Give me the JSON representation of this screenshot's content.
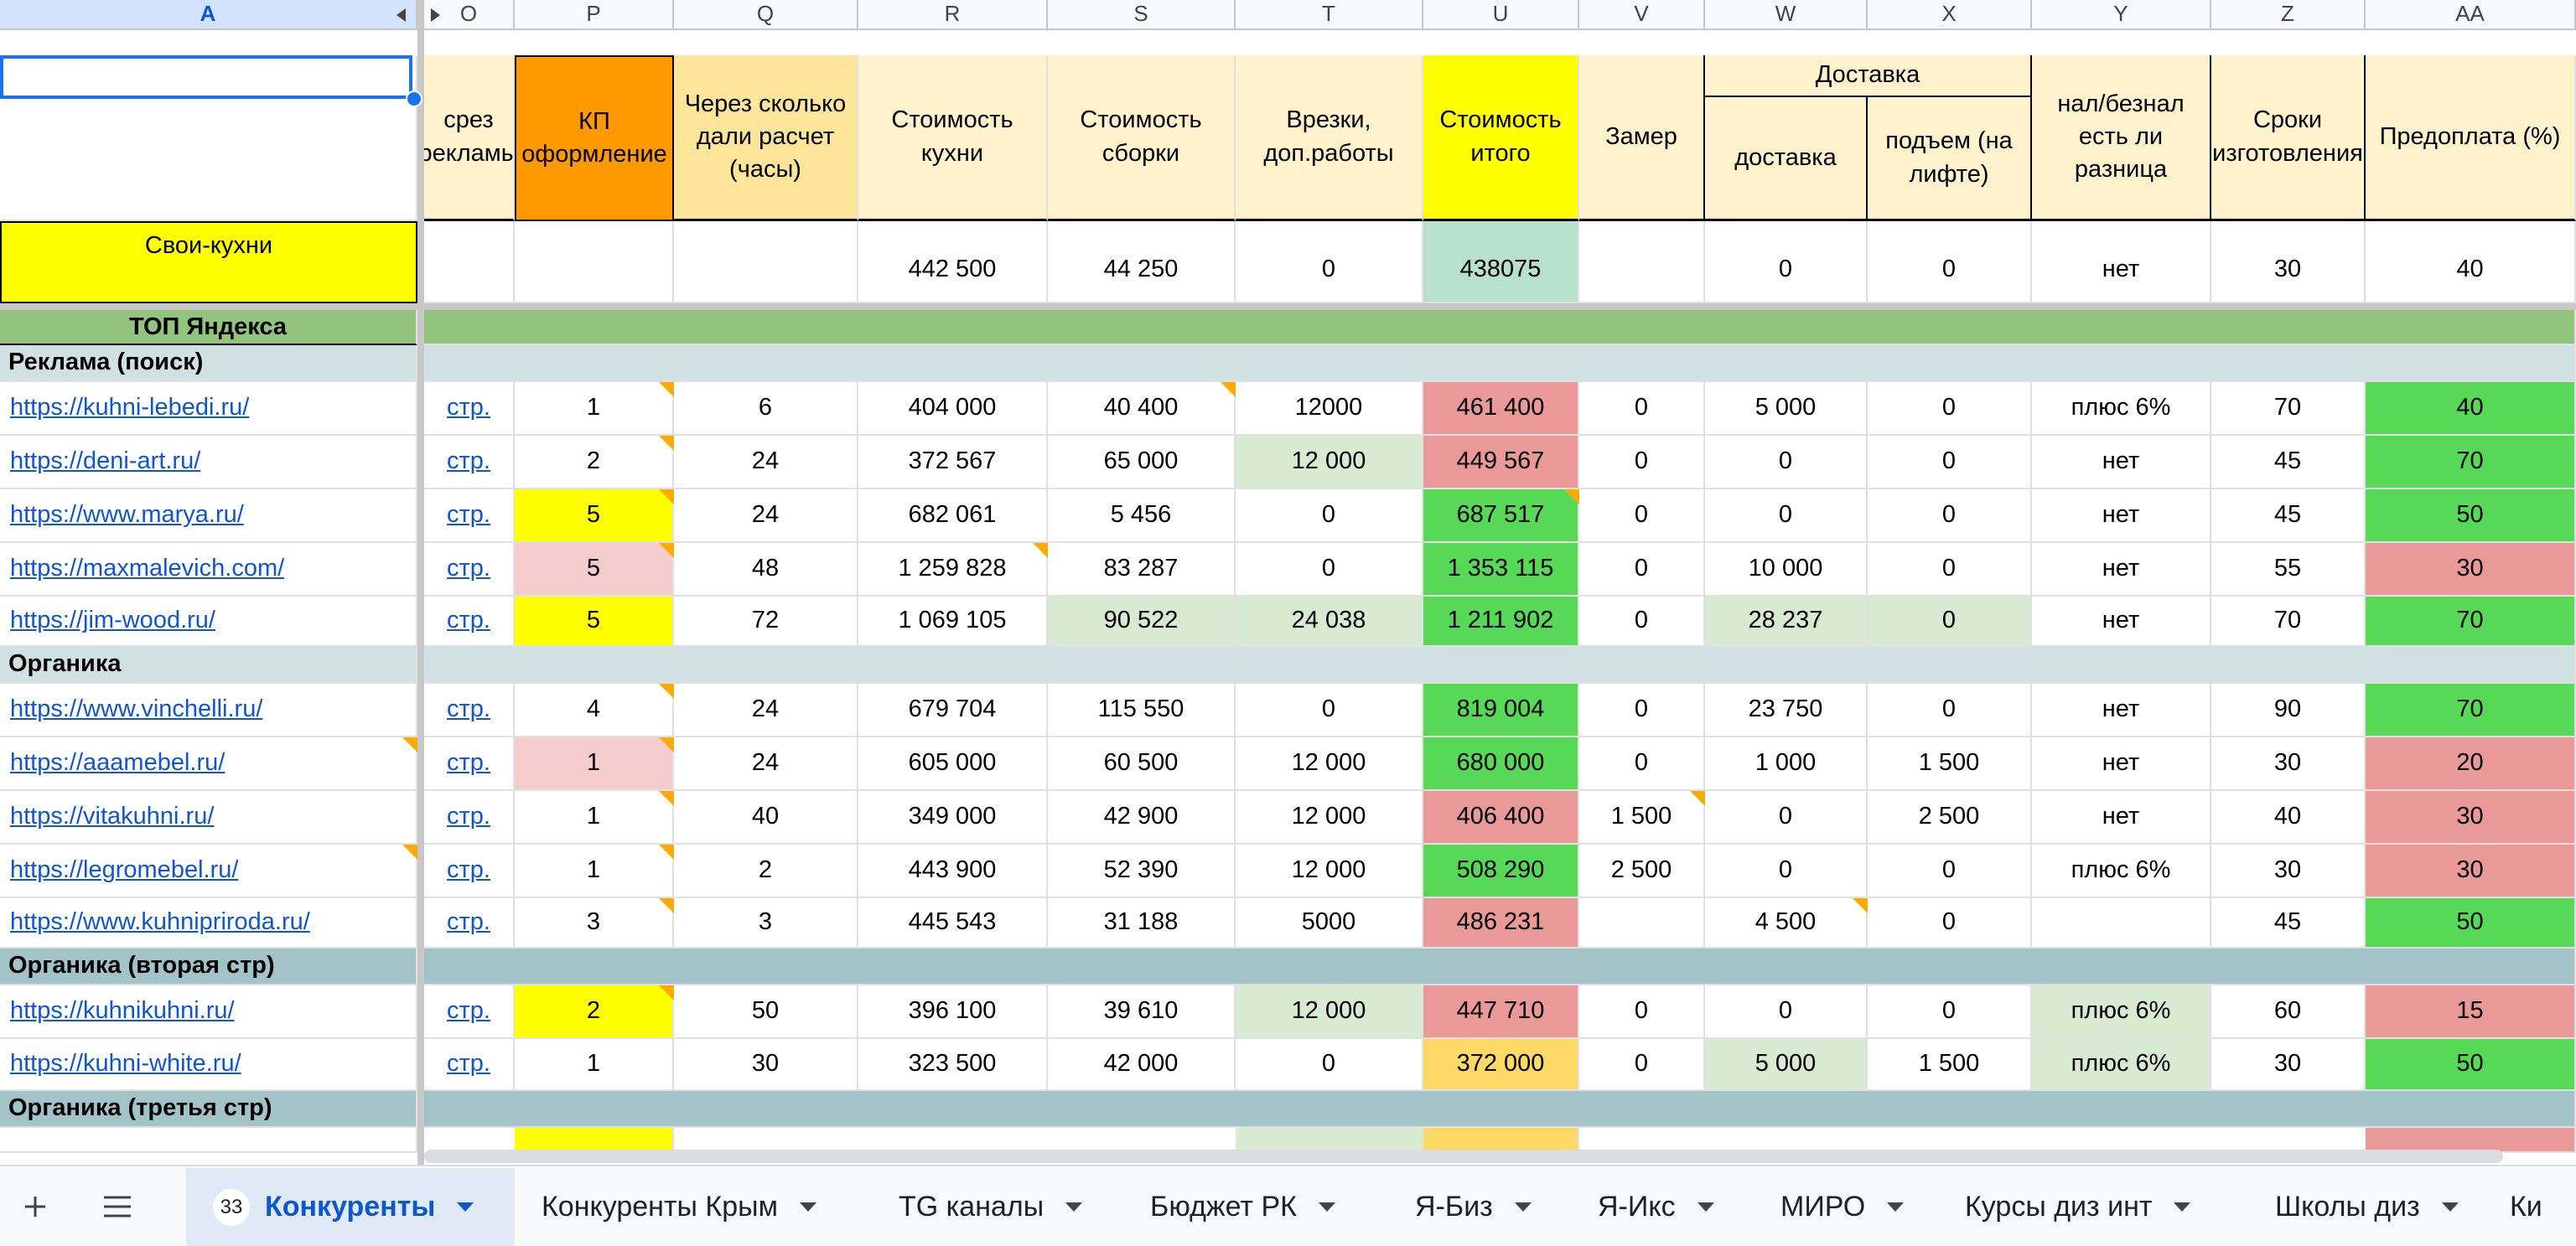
{
  "columns": [
    "A",
    "O",
    "P",
    "Q",
    "R",
    "S",
    "T",
    "U",
    "V",
    "W",
    "X",
    "Y",
    "Z",
    "AA"
  ],
  "headers": {
    "o": "срез рекламы",
    "p": "КП оформление",
    "q": "Через сколько дали расчет (часы)",
    "r": "Стоимость кухни",
    "s": "Стоимость сборки",
    "t": "Врезки, доп.работы",
    "u": "Стоимость итого",
    "v": "Замер",
    "delivery_group": "Доставка",
    "w": "доставка",
    "x": "подъем (на лифте)",
    "y": "нал/безнал есть ли разница",
    "z": "Сроки изготовления",
    "aa": "Предоплата (%)"
  },
  "own": {
    "name": "Свои-кухни",
    "o": "",
    "p": "",
    "q": "",
    "r": "442 500",
    "s": "44 250",
    "t": "0",
    "u": "438075",
    "v": "",
    "w": "0",
    "x": "0",
    "y": "нет",
    "z": "30",
    "aa": "40"
  },
  "sections": {
    "top": "ТОП Яндекса",
    "ads": "Реклама (поиск)",
    "organic": "Органика",
    "organic2": "Органика (вторая стр)",
    "organic3": "Органика (третья стр)"
  },
  "rows": [
    {
      "a": "https://kuhni-lebedi.ru/",
      "o": "стр.",
      "p": "1",
      "q": "6",
      "r": "404 000",
      "s": "40 400",
      "t": "12000",
      "u": "461 400",
      "v": "0",
      "w": "5 000",
      "x": "0",
      "y": "плюс 6%",
      "z": "70",
      "aa": "40"
    },
    {
      "a": "https://deni-art.ru/",
      "o": "стр.",
      "p": "2",
      "q": "24",
      "r": "372 567",
      "s": "65 000",
      "t": "12 000",
      "u": "449 567",
      "v": "0",
      "w": "0",
      "x": "0",
      "y": "нет",
      "z": "45",
      "aa": "70"
    },
    {
      "a": "https://www.marya.ru/",
      "o": "стр.",
      "p": "5",
      "q": "24",
      "r": "682 061",
      "s": "5 456",
      "t": "0",
      "u": "687 517",
      "v": "0",
      "w": "0",
      "x": "0",
      "y": "нет",
      "z": "45",
      "aa": "50"
    },
    {
      "a": "https://maxmalevich.com/",
      "o": "стр.",
      "p": "5",
      "q": "48",
      "r": "1 259 828",
      "s": "83 287",
      "t": "0",
      "u": "1 353 115",
      "v": "0",
      "w": "10 000",
      "x": "0",
      "y": "нет",
      "z": "55",
      "aa": "30"
    },
    {
      "a": "https://jim-wood.ru/",
      "o": "стр.",
      "p": "5",
      "q": "72",
      "r": "1 069 105",
      "s": "90 522",
      "t": "24 038",
      "u": "1 211 902",
      "v": "0",
      "w": "28 237",
      "x": "0",
      "y": "нет",
      "z": "70",
      "aa": "70"
    },
    {
      "a": "https://www.vinchelli.ru/",
      "o": "стр.",
      "p": "4",
      "q": "24",
      "r": "679 704",
      "s": "115 550",
      "t": "0",
      "u": "819 004",
      "v": "0",
      "w": "23 750",
      "x": "0",
      "y": "нет",
      "z": "90",
      "aa": "70"
    },
    {
      "a": "https://aaamebel.ru/",
      "o": "стр.",
      "p": "1",
      "q": "24",
      "r": "605 000",
      "s": "60 500",
      "t": "12 000",
      "u": "680 000",
      "v": "0",
      "w": "1 000",
      "x": "1 500",
      "y": "нет",
      "z": "30",
      "aa": "20"
    },
    {
      "a": "https://vitakuhni.ru/",
      "o": "стр.",
      "p": "1",
      "q": "40",
      "r": "349 000",
      "s": "42 900",
      "t": "12 000",
      "u": "406 400",
      "v": "1 500",
      "w": "0",
      "x": "2 500",
      "y": "нет",
      "z": "40",
      "aa": "30"
    },
    {
      "a": "https://legromebel.ru/",
      "o": "стр.",
      "p": "1",
      "q": "2",
      "r": "443 900",
      "s": "52 390",
      "t": "12 000",
      "u": "508 290",
      "v": "2 500",
      "w": "0",
      "x": "0",
      "y": "плюс 6%",
      "z": "30",
      "aa": "30"
    },
    {
      "a": "https://www.kuhnipriroda.ru/",
      "o": "стр.",
      "p": "3",
      "q": "3",
      "r": "445 543",
      "s": "31 188",
      "t": "5000",
      "u": "486 231",
      "v": "",
      "w": "4 500",
      "x": "0",
      "y": "",
      "z": "45",
      "aa": "50"
    },
    {
      "a": "https://kuhnikuhni.ru/",
      "o": "стр.",
      "p": "2",
      "q": "50",
      "r": "396 100",
      "s": "39 610",
      "t": "12 000",
      "u": "447 710",
      "v": "0",
      "w": "0",
      "x": "0",
      "y": "плюс 6%",
      "z": "60",
      "aa": "15"
    },
    {
      "a": "https://kuhni-white.ru/",
      "o": "стр.",
      "p": "1",
      "q": "30",
      "r": "323 500",
      "s": "42 000",
      "t": "0",
      "u": "372 000",
      "v": "0",
      "w": "5 000",
      "x": "1 500",
      "y": "плюс 6%",
      "z": "30",
      "aa": "50"
    }
  ],
  "colors": {
    "yellow": "#ffff00",
    "orange": "#ff9900",
    "pink": "#f4cccc",
    "lightgreen": "#d9ead3",
    "green": "#57d957",
    "red": "#ea9999",
    "amber": "#ffd966",
    "mint": "#b7e1cd",
    "header": "#fff2cc",
    "qheader": "#ffe599",
    "topgreen": "#93c47d",
    "steel": "#d0e0e3",
    "teal": "#a2c4c9"
  },
  "tabs": [
    {
      "label": "Конкуренты",
      "badge": "33",
      "active": true
    },
    {
      "label": "Конкуренты Крым"
    },
    {
      "label": "TG каналы"
    },
    {
      "label": "Бюджет РК"
    },
    {
      "label": "Я-Биз"
    },
    {
      "label": "Я-Икс"
    },
    {
      "label": "МИРО"
    },
    {
      "label": "Курсы диз инт"
    },
    {
      "label": "Школы диз"
    },
    {
      "label": "Ки"
    }
  ],
  "icons": {
    "add": "plus-icon",
    "menu": "hamburger-icon",
    "dropdown": "caret-down-icon",
    "collapse": "triangle-left-icon",
    "expand": "triangle-right-icon"
  }
}
